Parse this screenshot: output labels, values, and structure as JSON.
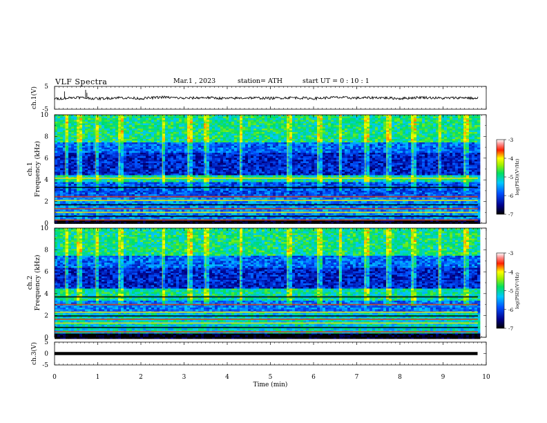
{
  "header": {
    "title": "VLF  Spectra",
    "date": "Mar.1  , 2023",
    "station": "station= ATH",
    "start": "start  UT  =   0  : 10 : 1"
  },
  "chart_data": [
    {
      "type": "line",
      "panel": "ch1-waveform",
      "ylabel": "ch.1(V)",
      "ylim": [
        -5,
        5
      ],
      "yticks": [
        5,
        -5
      ],
      "x": [
        0,
        0.5,
        1,
        1.5,
        2,
        2.5,
        3,
        3.5,
        4,
        4.5,
        5,
        5.5,
        6,
        6.5,
        7,
        7.5,
        8,
        8.5,
        9,
        9.5,
        9.8
      ],
      "y": [
        -0.5,
        0.2,
        -0.4,
        0.1,
        -0.3,
        0.3,
        -0.2,
        0.1,
        -0.3,
        0.0,
        -0.2,
        0.1,
        -0.3,
        0.2,
        -0.1,
        0.1,
        -0.3,
        0.2,
        -0.2,
        0.1,
        -0.4
      ],
      "spikes": [
        {
          "x": 0.23,
          "y": 2.8
        },
        {
          "x": 0.72,
          "y": 3.5
        },
        {
          "x": 0.75,
          "y": 2.2
        }
      ]
    },
    {
      "type": "heatmap",
      "panel": "ch1-spectrogram",
      "ylabel_top": "ch.1",
      "ylabel": "Frequency (kHz)",
      "ylim": [
        0,
        10
      ],
      "yticks": [
        0,
        2,
        4,
        6,
        8,
        10
      ],
      "xlim": [
        0,
        9.8
      ],
      "colorbar": {
        "label": "log(PSD)(V²/Hz)",
        "range": [
          -7,
          -3
        ],
        "ticks": [
          -3,
          -4,
          -5,
          -6,
          -7
        ]
      },
      "bands_khz_logpsd": [
        {
          "from": 7.5,
          "to": 10,
          "value": -4.9
        },
        {
          "from": 6.5,
          "to": 7.5,
          "value": -5.8
        },
        {
          "from": 4.5,
          "to": 6.5,
          "value": -6.2
        },
        {
          "from": 3.8,
          "to": 4.5,
          "value": -5.0
        },
        {
          "from": 2.5,
          "to": 3.8,
          "value": -5.9
        },
        {
          "from": 0.3,
          "to": 2.5,
          "value": -5.6
        },
        {
          "from": 0,
          "to": 0.3,
          "value": -7.0
        }
      ],
      "lines_khz": [
        0.3,
        0.65,
        1.0,
        1.35,
        1.7,
        2.1,
        2.45,
        3.3,
        4.15
      ],
      "vertical_events_min": [
        0.25,
        0.55,
        0.95,
        1.5,
        2.5,
        3.1,
        3.5,
        4.3,
        5.4,
        6.1,
        6.6,
        7.2,
        7.7,
        8.3,
        8.9,
        9.5
      ]
    },
    {
      "type": "heatmap",
      "panel": "ch2-spectrogram",
      "ylabel_top": "ch.2",
      "ylabel": "Frequency (kHz)",
      "ylim": [
        0,
        10
      ],
      "yticks": [
        0,
        2,
        4,
        6,
        8,
        10
      ],
      "xlim": [
        0,
        9.8
      ],
      "colorbar": {
        "label": "log(PSD)(V²/Hz)",
        "range": [
          -7,
          -3
        ],
        "ticks": [
          -3,
          -4,
          -5,
          -6,
          -7
        ]
      },
      "bands_khz_logpsd": [
        {
          "from": 7.5,
          "to": 10,
          "value": -4.9
        },
        {
          "from": 6.5,
          "to": 7.5,
          "value": -5.8
        },
        {
          "from": 4.5,
          "to": 6.5,
          "value": -6.2
        },
        {
          "from": 3.5,
          "to": 4.5,
          "value": -5.0
        },
        {
          "from": 2.4,
          "to": 3.5,
          "value": -5.7
        },
        {
          "from": 0.4,
          "to": 2.4,
          "value": -5.2
        },
        {
          "from": 0,
          "to": 0.4,
          "value": -7.0
        }
      ],
      "lines_khz": [
        0.5,
        0.9,
        1.3,
        1.65,
        1.95,
        2.3,
        3.0,
        3.7
      ],
      "vertical_events_min": [
        0.25,
        0.55,
        0.95,
        1.5,
        2.5,
        3.1,
        3.5,
        4.3,
        5.4,
        6.1,
        6.6,
        7.2,
        7.7,
        8.3,
        8.9,
        9.5
      ]
    },
    {
      "type": "line",
      "panel": "ch3-waveform",
      "ylabel": "ch.3(V)",
      "ylim": [
        -5,
        5
      ],
      "yticks": [
        5,
        0,
        -5
      ],
      "x": [
        0,
        9.8
      ],
      "y": [
        0,
        0
      ],
      "xlabel": "Time  (min)",
      "xlim": [
        0,
        10
      ],
      "xticks": [
        0,
        1,
        2,
        3,
        4,
        5,
        6,
        7,
        8,
        9,
        10
      ]
    }
  ]
}
